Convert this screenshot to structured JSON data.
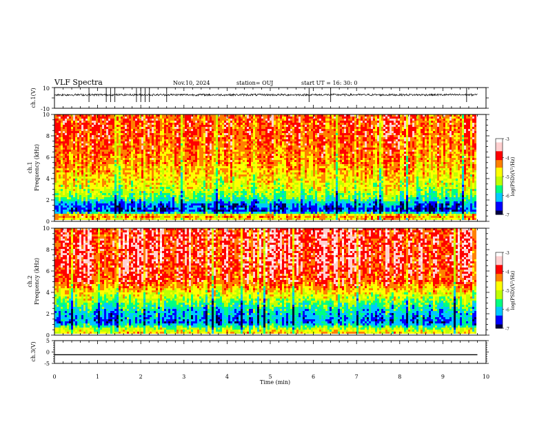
{
  "header": {
    "title": "VLF Spectra",
    "date": "Nov.10, 2024",
    "station": "station= OUJ",
    "start": "start  UT  =   16: 30: 0"
  },
  "chart_data": [
    {
      "panel": "ch1-waveform",
      "type": "line",
      "ylabel": "ch.1(V)",
      "ylim": [
        -10,
        10
      ],
      "yticks": [
        "10",
        "-10"
      ],
      "xlim": [
        0,
        10
      ],
      "x_extent_min": [
        0,
        9.8
      ],
      "baseline_V": 3,
      "noise_amplitude_V": 2,
      "spike_times_min": [
        0.8,
        1.2,
        1.3,
        1.4,
        1.9,
        2.0,
        2.1,
        2.2,
        2.6,
        5.9,
        6.4,
        9.55
      ]
    },
    {
      "panel": "ch1-spectrogram",
      "type": "heatmap",
      "ylabel_line1": "ch.1",
      "ylabel_line2": "Frequency  (kHz)",
      "ylim": [
        0,
        10
      ],
      "yticks": [
        "0",
        "2",
        "4",
        "6",
        "8",
        "10"
      ],
      "xlim": [
        0,
        10
      ],
      "colorbar": {
        "label": "log(PSD)(V²/Hz)",
        "range": [
          -7,
          -3
        ],
        "ticks": [
          "-3",
          "-4",
          "-5",
          "-6",
          "-7"
        ],
        "colors": [
          "#000040",
          "#0000ff",
          "#00c8ff",
          "#00ff80",
          "#c0ff00",
          "#ffff00",
          "#ff8000",
          "#ff0000",
          "#ffd0d0",
          "#ffffff"
        ]
      },
      "freq_profile_logpsd": [
        {
          "f": 0.0,
          "v": -4.8
        },
        {
          "f": 0.4,
          "v": -4.2
        },
        {
          "f": 0.8,
          "v": -6.6
        },
        {
          "f": 1.5,
          "v": -6.3
        },
        {
          "f": 2.0,
          "v": -5.6
        },
        {
          "f": 3.0,
          "v": -5.0
        },
        {
          "f": 4.5,
          "v": -4.6
        },
        {
          "f": 6.0,
          "v": -4.3
        },
        {
          "f": 8.0,
          "v": -4.1
        },
        {
          "f": 10.0,
          "v": -4.1
        }
      ]
    },
    {
      "panel": "ch2-spectrogram",
      "type": "heatmap",
      "ylabel_line1": "ch.2",
      "ylabel_line2": "Frequency  (kHz)",
      "ylim": [
        0,
        10
      ],
      "yticks": [
        "0",
        "2",
        "4",
        "6",
        "8",
        "10"
      ],
      "xlim": [
        0,
        10
      ],
      "colorbar": {
        "label": "log(PSD)(V²/Hz)",
        "range": [
          -7,
          -3
        ],
        "ticks": [
          "-3",
          "-4",
          "-5",
          "-6",
          "-7"
        ],
        "colors": [
          "#000040",
          "#0000ff",
          "#00c8ff",
          "#00ff80",
          "#c0ff00",
          "#ffff00",
          "#ff8000",
          "#ff0000",
          "#ffd0d0",
          "#ffffff"
        ]
      },
      "freq_profile_logpsd": [
        {
          "f": 0.0,
          "v": -4.6
        },
        {
          "f": 0.5,
          "v": -5.2
        },
        {
          "f": 1.0,
          "v": -6.3
        },
        {
          "f": 2.0,
          "v": -6.0
        },
        {
          "f": 3.0,
          "v": -5.4
        },
        {
          "f": 4.0,
          "v": -4.7
        },
        {
          "f": 5.0,
          "v": -4.0
        },
        {
          "f": 7.0,
          "v": -3.8
        },
        {
          "f": 10.0,
          "v": -3.8
        }
      ]
    },
    {
      "panel": "ch3-waveform",
      "type": "line",
      "ylabel": "ch.3(V)",
      "ylim": [
        -5,
        5
      ],
      "yticks": [
        "5",
        "0",
        "-5"
      ],
      "xlim": [
        0,
        10
      ],
      "x_extent_min": [
        0,
        9.8
      ],
      "baseline_V": -1.2
    }
  ],
  "xaxis": {
    "label": "Time  (min)",
    "ticks": [
      "0",
      "1",
      "2",
      "3",
      "4",
      "5",
      "6",
      "7",
      "8",
      "9",
      "10"
    ]
  }
}
